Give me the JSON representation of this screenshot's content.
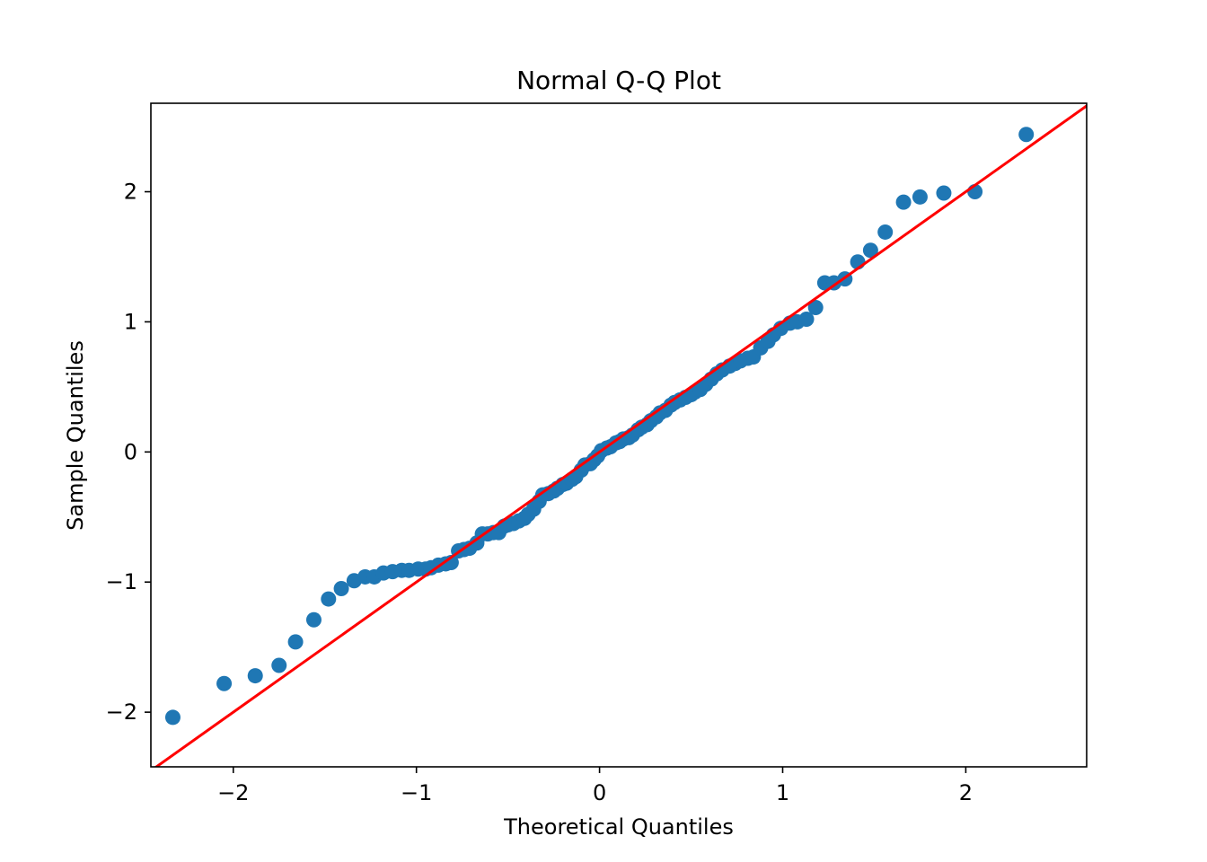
{
  "chart_data": {
    "type": "scatter",
    "title": "Normal Q-Q Plot",
    "xlabel": "Theoretical Quantiles",
    "ylabel": "Sample Quantiles",
    "xlim": [
      -2.45,
      2.66
    ],
    "ylim": [
      -2.42,
      2.68
    ],
    "xticks": [
      -2,
      -1,
      0,
      1,
      2
    ],
    "yticks": [
      -2,
      -1,
      0,
      1,
      2
    ],
    "xtick_labels": [
      "−2",
      "−1",
      "0",
      "1",
      "2"
    ],
    "ytick_labels": [
      "−2",
      "−1",
      "0",
      "1",
      "2"
    ],
    "grid": false,
    "point_color": "#1f77b4",
    "line_color": "#ff0000",
    "reference_line": {
      "slope": 1.0,
      "intercept": 0.0
    },
    "points": [
      [
        -2.33,
        -2.04
      ],
      [
        -2.05,
        -1.78
      ],
      [
        -1.88,
        -1.72
      ],
      [
        -1.75,
        -1.64
      ],
      [
        -1.66,
        -1.46
      ],
      [
        -1.56,
        -1.29
      ],
      [
        -1.48,
        -1.13
      ],
      [
        -1.41,
        -1.05
      ],
      [
        -1.34,
        -0.99
      ],
      [
        -1.28,
        -0.96
      ],
      [
        -1.23,
        -0.96
      ],
      [
        -1.18,
        -0.93
      ],
      [
        -1.13,
        -0.92
      ],
      [
        -1.08,
        -0.91
      ],
      [
        -1.04,
        -0.91
      ],
      [
        -0.99,
        -0.9
      ],
      [
        -0.95,
        -0.9
      ],
      [
        -0.92,
        -0.89
      ],
      [
        -0.88,
        -0.87
      ],
      [
        -0.84,
        -0.86
      ],
      [
        -0.81,
        -0.85
      ],
      [
        -0.77,
        -0.76
      ],
      [
        -0.74,
        -0.75
      ],
      [
        -0.71,
        -0.74
      ],
      [
        -0.67,
        -0.7
      ],
      [
        -0.64,
        -0.63
      ],
      [
        -0.61,
        -0.63
      ],
      [
        -0.58,
        -0.62
      ],
      [
        -0.55,
        -0.62
      ],
      [
        -0.52,
        -0.57
      ],
      [
        -0.5,
        -0.56
      ],
      [
        -0.47,
        -0.55
      ],
      [
        -0.44,
        -0.53
      ],
      [
        -0.41,
        -0.51
      ],
      [
        -0.39,
        -0.48
      ],
      [
        -0.36,
        -0.44
      ],
      [
        -0.33,
        -0.38
      ],
      [
        -0.31,
        -0.33
      ],
      [
        -0.28,
        -0.32
      ],
      [
        -0.25,
        -0.3
      ],
      [
        -0.23,
        -0.28
      ],
      [
        -0.2,
        -0.25
      ],
      [
        -0.18,
        -0.24
      ],
      [
        -0.15,
        -0.21
      ],
      [
        -0.13,
        -0.19
      ],
      [
        -0.1,
        -0.14
      ],
      [
        -0.08,
        -0.1
      ],
      [
        -0.05,
        -0.09
      ],
      [
        -0.03,
        -0.06
      ],
      [
        -0.01,
        -0.03
      ],
      [
        0.01,
        0.01
      ],
      [
        0.04,
        0.03
      ],
      [
        0.06,
        0.04
      ],
      [
        0.09,
        0.07
      ],
      [
        0.11,
        0.08
      ],
      [
        0.13,
        0.1
      ],
      [
        0.16,
        0.11
      ],
      [
        0.18,
        0.13
      ],
      [
        0.21,
        0.17
      ],
      [
        0.23,
        0.19
      ],
      [
        0.26,
        0.21
      ],
      [
        0.28,
        0.24
      ],
      [
        0.31,
        0.27
      ],
      [
        0.33,
        0.3
      ],
      [
        0.36,
        0.32
      ],
      [
        0.39,
        0.36
      ],
      [
        0.41,
        0.38
      ],
      [
        0.44,
        0.4
      ],
      [
        0.47,
        0.42
      ],
      [
        0.5,
        0.44
      ],
      [
        0.52,
        0.46
      ],
      [
        0.55,
        0.48
      ],
      [
        0.58,
        0.52
      ],
      [
        0.61,
        0.56
      ],
      [
        0.64,
        0.6
      ],
      [
        0.67,
        0.63
      ],
      [
        0.71,
        0.66
      ],
      [
        0.74,
        0.68
      ],
      [
        0.77,
        0.7
      ],
      [
        0.81,
        0.72
      ],
      [
        0.84,
        0.73
      ],
      [
        0.88,
        0.8
      ],
      [
        0.92,
        0.85
      ],
      [
        0.95,
        0.9
      ],
      [
        0.99,
        0.95
      ],
      [
        1.04,
        0.99
      ],
      [
        1.08,
        1.0
      ],
      [
        1.13,
        1.02
      ],
      [
        1.18,
        1.11
      ],
      [
        1.23,
        1.3
      ],
      [
        1.28,
        1.3
      ],
      [
        1.34,
        1.33
      ],
      [
        1.41,
        1.46
      ],
      [
        1.48,
        1.55
      ],
      [
        1.56,
        1.69
      ],
      [
        1.66,
        1.92
      ],
      [
        1.75,
        1.96
      ],
      [
        1.88,
        1.99
      ],
      [
        2.05,
        2.0
      ],
      [
        2.33,
        2.44
      ]
    ]
  }
}
